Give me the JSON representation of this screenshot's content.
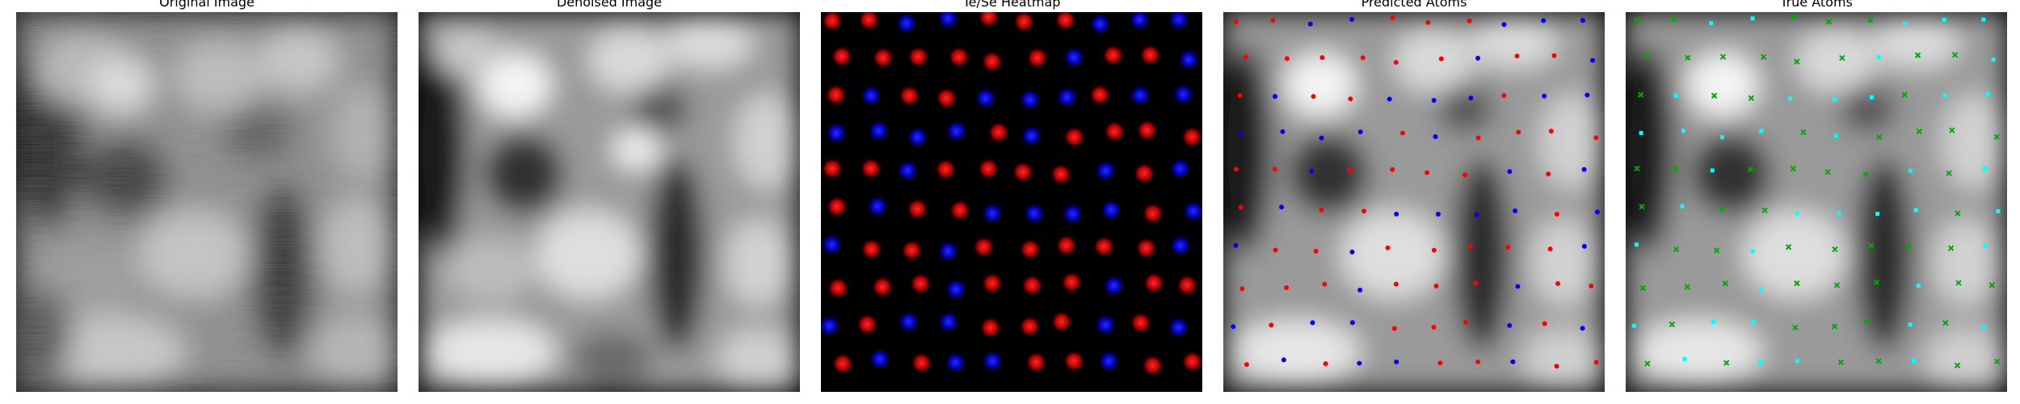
{
  "panels": [
    {
      "title": "Original Image"
    },
    {
      "title": "Denoised Image"
    },
    {
      "title": "Te/Se Heatmap"
    },
    {
      "title": "Predicted Atoms"
    },
    {
      "title": "True Atoms"
    }
  ],
  "colors": {
    "te": "#ff0000",
    "se": "#0000ff",
    "pred_te": "#ff0000",
    "pred_se": "#0000ff",
    "true_cyan": "#00ffff",
    "true_green": "#00aa00",
    "heatmap_bg": "#000000"
  },
  "marker_shapes": {
    "predicted": "dot",
    "true_cyan": "square",
    "true_green": "x"
  }
}
